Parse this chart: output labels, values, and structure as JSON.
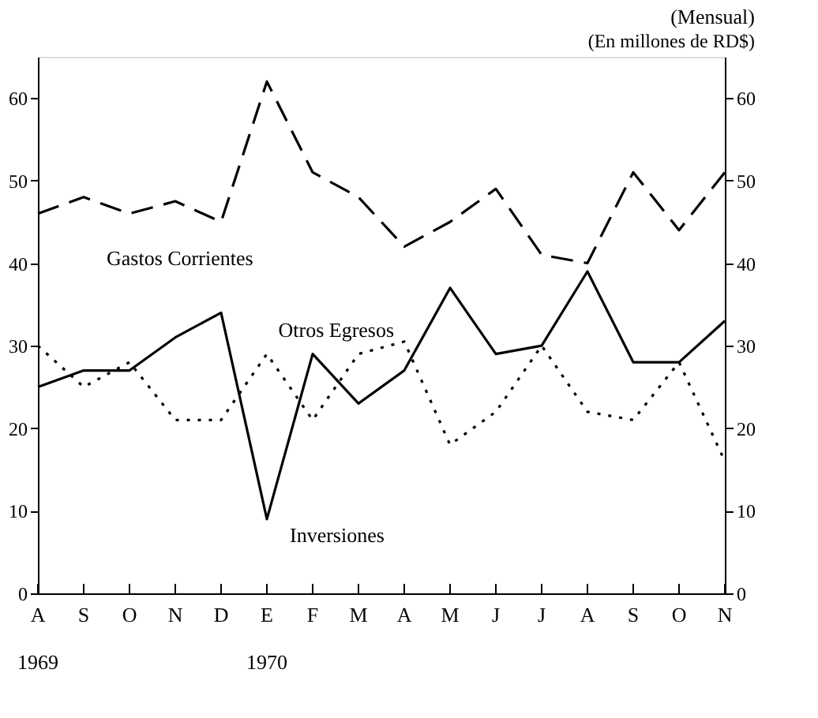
{
  "chart_data": {
    "type": "line",
    "title": "(Mensual)",
    "subtitle": "(En millones de RD$)",
    "categories": [
      "A\n1969",
      "S",
      "O",
      "N",
      "D",
      "E\n1970",
      "F",
      "M",
      "A",
      "M",
      "J",
      "J",
      "A",
      "S",
      "O",
      "N"
    ],
    "series": [
      {
        "name": "Gastos Corrientes",
        "color": "#000000",
        "line_style": "dashed",
        "values": [
          46,
          48,
          46,
          47.5,
          45,
          62,
          51,
          48,
          42,
          45,
          49,
          41,
          40,
          51,
          44,
          51
        ]
      },
      {
        "name": "Otros Egresos",
        "color": "#000000",
        "line_style": "dotted",
        "values": [
          30,
          25,
          28,
          21,
          21,
          29,
          21,
          29,
          30.5,
          18,
          22,
          30,
          22,
          21,
          28,
          16
        ]
      },
      {
        "name": "Inversiones",
        "color": "#000000",
        "line_style": "solid",
        "values": [
          25,
          27,
          27,
          31,
          34,
          9,
          29,
          23,
          27,
          37,
          29,
          30,
          39,
          28,
          28,
          33
        ]
      }
    ],
    "ylim": [
      0,
      65
    ],
    "yticks": [
      0,
      10,
      20,
      30,
      40,
      50,
      60
    ],
    "y2lim": [
      0,
      65
    ],
    "y2ticks": [
      0,
      10,
      20,
      30,
      40,
      50,
      60
    ],
    "grid": false,
    "marker": "none"
  }
}
